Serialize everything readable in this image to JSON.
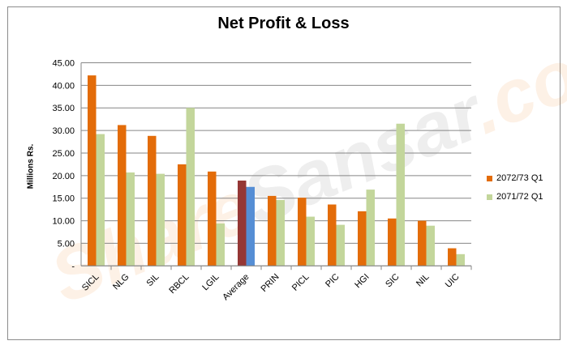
{
  "chart_data": {
    "type": "bar",
    "title": "Net Profit & Loss",
    "ylabel": "Millions Rs.",
    "xlabel": "",
    "ylim": [
      0,
      45
    ],
    "yticks": [
      "-",
      "5.00",
      "10.00",
      "15.00",
      "20.00",
      "25.00",
      "30.00",
      "35.00",
      "40.00",
      "45.00"
    ],
    "grid": true,
    "legend_position": "right",
    "categories": [
      "SICL",
      "NLG",
      "SIL",
      "RBCL",
      "LGIL",
      "Average",
      "PRIN",
      "PICL",
      "PIC",
      "HGI",
      "SIC",
      "NIL",
      "UIC"
    ],
    "series": [
      {
        "name": "2072/73 Q1",
        "color": "#e36c09",
        "values": [
          42.2,
          31.2,
          28.8,
          22.5,
          20.9,
          18.9,
          15.5,
          15.1,
          13.6,
          12.1,
          10.5,
          10.0,
          3.9
        ]
      },
      {
        "name": "2071/72 Q1",
        "color": "#c3d69b",
        "values": [
          29.2,
          20.7,
          20.4,
          35.0,
          9.4,
          17.5,
          14.6,
          10.9,
          9.1,
          16.9,
          31.5,
          8.9,
          2.6
        ]
      }
    ],
    "average_colors": [
      "#953735",
      "#558ed5"
    ]
  },
  "watermark": "ShareSansar.com"
}
